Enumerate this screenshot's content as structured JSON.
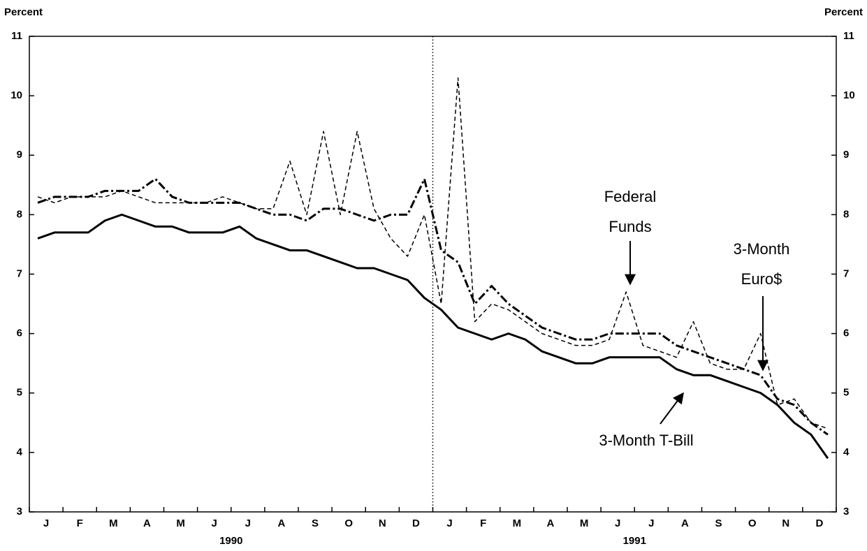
{
  "chart_data": {
    "type": "line",
    "y_label": "Percent",
    "y2_label": "Percent",
    "categories": [
      "J",
      null,
      "F",
      null,
      "M",
      null,
      "A",
      null,
      "M",
      null,
      "J",
      null,
      "J",
      null,
      "A",
      null,
      "S",
      null,
      "O",
      null,
      "N",
      null,
      "D",
      null,
      "J",
      null,
      "F",
      null,
      "M",
      null,
      "A",
      null,
      "M",
      null,
      "J",
      null,
      "J",
      null,
      "A",
      null,
      "S",
      null,
      "O",
      null,
      "N",
      null,
      "D",
      null
    ],
    "year_labels": [
      "1990",
      "1991"
    ],
    "series": [
      {
        "name": "3-Month T-Bill",
        "color": "#000000",
        "style": "solid",
        "values": [
          7.6,
          7.7,
          7.7,
          7.7,
          7.9,
          8.0,
          7.9,
          7.8,
          7.8,
          7.7,
          7.7,
          7.7,
          7.8,
          7.6,
          7.5,
          7.4,
          7.4,
          7.3,
          7.2,
          7.1,
          7.1,
          7.0,
          6.9,
          6.6,
          6.4,
          6.1,
          6.0,
          5.9,
          6.0,
          5.9,
          5.7,
          5.6,
          5.5,
          5.5,
          5.6,
          5.6,
          5.6,
          5.6,
          5.4,
          5.3,
          5.3,
          5.2,
          5.1,
          5.0,
          4.8,
          4.5,
          4.3,
          3.9
        ]
      },
      {
        "name": "3-Month Euro$",
        "color": "#000000",
        "style": "dashdot",
        "values": [
          8.2,
          8.3,
          8.3,
          8.3,
          8.4,
          8.4,
          8.4,
          8.6,
          8.3,
          8.2,
          8.2,
          8.2,
          8.2,
          8.1,
          8.0,
          8.0,
          7.9,
          8.1,
          8.1,
          8.0,
          7.9,
          8.0,
          8.0,
          8.6,
          7.4,
          7.2,
          6.5,
          6.8,
          6.5,
          6.3,
          6.1,
          6.0,
          5.9,
          5.9,
          6.0,
          6.0,
          6.0,
          6.0,
          5.8,
          5.7,
          5.6,
          5.5,
          5.4,
          5.3,
          4.9,
          4.8,
          4.5,
          4.3
        ]
      },
      {
        "name": "Federal Funds",
        "color": "#000000",
        "style": "dashed",
        "values": [
          8.3,
          8.2,
          8.3,
          8.3,
          8.3,
          8.4,
          8.3,
          8.2,
          8.2,
          8.2,
          8.2,
          8.3,
          8.2,
          8.1,
          8.1,
          8.9,
          8.0,
          9.4,
          8.0,
          9.4,
          8.1,
          7.6,
          7.3,
          8.0,
          6.5,
          10.3,
          6.2,
          6.5,
          6.4,
          6.2,
          6.0,
          5.9,
          5.8,
          5.8,
          5.9,
          6.7,
          5.8,
          5.7,
          5.6,
          6.2,
          5.5,
          5.4,
          5.4,
          6.0,
          4.8,
          4.9,
          4.5,
          4.4
        ]
      }
    ],
    "annotations": [
      {
        "lines": [
          "Federal",
          "Funds"
        ]
      },
      {
        "lines": [
          "3-Month",
          "Euro$"
        ]
      },
      {
        "lines": [
          "3-Month T-Bill"
        ]
      }
    ],
    "ylim": [
      3,
      11
    ],
    "yticks": [
      3,
      4,
      5,
      6,
      7,
      8,
      9,
      10,
      11
    ],
    "y2lim": [
      3,
      11
    ],
    "y2ticks": [
      3,
      4,
      5,
      6,
      7,
      8,
      9,
      10,
      11
    ]
  }
}
